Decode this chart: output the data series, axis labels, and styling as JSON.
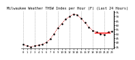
{
  "title": "Milwaukee Weather THSW Index per Hour (F) (Last 24 Hours)",
  "x_values": [
    0,
    1,
    2,
    3,
    4,
    5,
    6,
    7,
    8,
    9,
    10,
    11,
    12,
    13,
    14,
    15,
    16,
    17,
    18,
    19,
    20,
    21,
    22,
    23
  ],
  "y_values": [
    38,
    36,
    35,
    36,
    37,
    38,
    40,
    44,
    50,
    57,
    62,
    67,
    70,
    73,
    72,
    68,
    63,
    58,
    54,
    52,
    50,
    49,
    52,
    53
  ],
  "line_color": "#cc0000",
  "marker_color": "#000000",
  "bg_color": "#ffffff",
  "grid_color": "#888888",
  "ylim": [
    33,
    77
  ],
  "yticks": [
    35,
    40,
    45,
    50,
    55,
    60,
    65,
    70,
    75
  ],
  "ytick_labels": [
    "35",
    "40",
    "45",
    "50",
    "55",
    "60",
    "65",
    "70",
    "75"
  ],
  "title_fontsize": 3.8,
  "tick_fontsize": 3.0,
  "avg_line_y": 51,
  "avg_line_color": "#ff0000",
  "avg_line_x": [
    18.5,
    22.5
  ],
  "grid_x": [
    0,
    3,
    6,
    9,
    12,
    15,
    18,
    21
  ]
}
